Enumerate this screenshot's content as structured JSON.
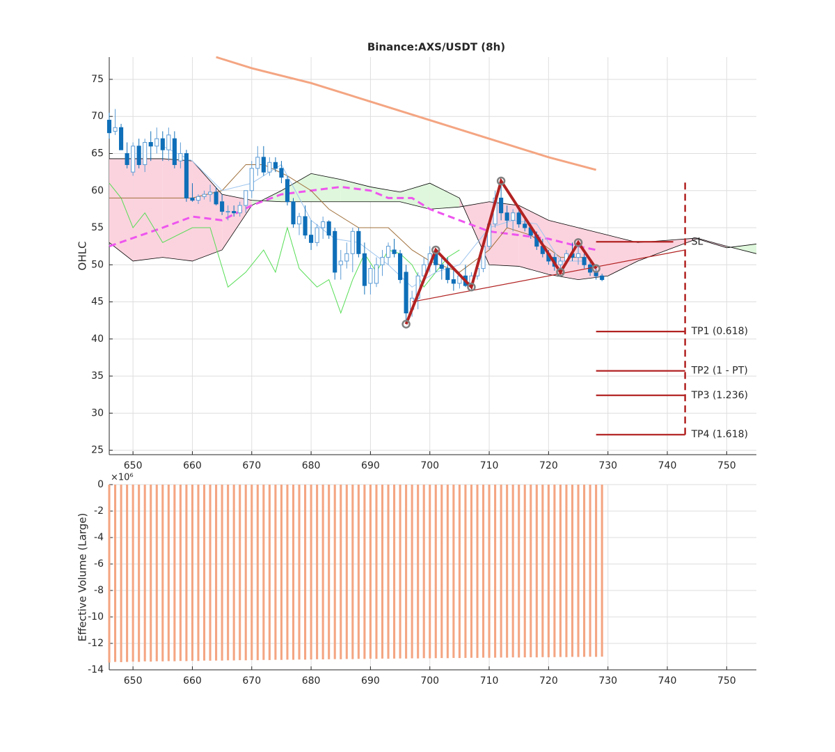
{
  "chart_data": [
    {
      "type": "candlestick",
      "title": "Binance:AXS/USDT (8h)",
      "y_label": "OHLC",
      "xlim": [
        646,
        755
      ],
      "ylim": [
        24.4,
        78
      ],
      "xticks": [
        650,
        660,
        670,
        680,
        690,
        700,
        710,
        720,
        730,
        740,
        750
      ],
      "yticks": [
        25,
        30,
        35,
        40,
        45,
        50,
        55,
        60,
        65,
        70,
        75
      ],
      "grid": true,
      "up_color": "#5b9bd5",
      "down_color": "#0f6fb8",
      "x": [
        646,
        647,
        648,
        649,
        650,
        651,
        652,
        653,
        654,
        655,
        656,
        657,
        658,
        659,
        660,
        661,
        662,
        663,
        664,
        665,
        666,
        667,
        668,
        669,
        670,
        671,
        672,
        673,
        674,
        675,
        676,
        677,
        678,
        679,
        680,
        681,
        682,
        683,
        684,
        685,
        686,
        687,
        688,
        689,
        690,
        691,
        692,
        693,
        694,
        695,
        696,
        697,
        698,
        699,
        700,
        701,
        702,
        703,
        704,
        705,
        706,
        707,
        708,
        709,
        710,
        711,
        712,
        713,
        714,
        715,
        716,
        717,
        718,
        719,
        720,
        721,
        722,
        723,
        724,
        725,
        726,
        727,
        728,
        729
      ],
      "open": [
        69.5,
        68,
        68.5,
        65,
        62.5,
        66,
        63.5,
        66.5,
        66,
        67,
        65.5,
        67,
        64,
        65,
        59,
        58.7,
        59.2,
        59.5,
        59.8,
        58.5,
        57.2,
        57.2,
        57,
        58,
        60,
        63,
        64.5,
        62.5,
        63.8,
        63,
        61.5,
        58.5,
        55.5,
        56.5,
        54,
        53,
        55,
        55.8,
        54.5,
        50,
        50.5,
        51.5,
        54.5,
        51.5,
        47.5,
        47.5,
        50,
        51,
        52,
        51.5,
        49,
        44,
        45.5,
        48.5,
        50,
        51.5,
        50,
        49.5,
        48,
        47.5,
        48.5,
        47.5,
        48.5,
        49.5,
        52.5,
        55.5,
        59,
        57,
        56,
        57,
        55.5,
        55,
        54,
        52.5,
        51.5,
        51,
        50,
        50.5,
        51.5,
        51,
        51,
        50,
        49,
        48.5
      ],
      "high": [
        70.5,
        71,
        69,
        66.5,
        66.5,
        67,
        67,
        68,
        68.5,
        68,
        68.5,
        68,
        66.5,
        65.5,
        61,
        59.5,
        60,
        60.8,
        60.5,
        59.5,
        58,
        58,
        58.5,
        60,
        64,
        66,
        66,
        64.5,
        64.5,
        64,
        62,
        59,
        57,
        58,
        56,
        55.5,
        56.5,
        56,
        55,
        52,
        53,
        55,
        55,
        53,
        50,
        51,
        52,
        53,
        53.5,
        52,
        50,
        46.5,
        49,
        51,
        52.5,
        52,
        51,
        51,
        49.5,
        49,
        50,
        49,
        50,
        53,
        56,
        60,
        61.5,
        58,
        57.5,
        57.5,
        56.5,
        55.5,
        54.5,
        53.5,
        52,
        51.5,
        51,
        52,
        53,
        53,
        51.5,
        50.5,
        49.5,
        48.8
      ],
      "low": [
        67,
        67.5,
        65.5,
        63,
        62,
        63,
        62.5,
        64,
        65,
        64,
        64,
        63,
        63,
        58.5,
        58.5,
        58.2,
        58.8,
        58.5,
        58,
        56.7,
        56,
        56.5,
        56.5,
        57,
        59,
        62,
        62,
        62,
        62.5,
        61,
        58,
        55,
        54,
        53.5,
        52,
        52.5,
        53.5,
        53.5,
        48,
        48,
        49.5,
        49,
        51,
        46,
        46,
        47,
        48.5,
        50,
        51,
        47.5,
        42,
        43,
        44,
        47.5,
        49,
        49,
        48,
        47.5,
        46.5,
        46.8,
        47,
        46.5,
        48,
        49,
        52,
        55,
        56,
        55,
        54.5,
        55,
        54.5,
        53.5,
        52,
        51,
        50,
        49.2,
        48.5,
        50,
        50.5,
        50,
        49.5,
        48.5,
        48,
        47.8
      ],
      "close": [
        67.8,
        68.5,
        65.5,
        63.5,
        66,
        63.5,
        66.5,
        66,
        67,
        65.5,
        67.5,
        63.5,
        65,
        59,
        58.7,
        59.2,
        59.5,
        59.8,
        58.2,
        57.2,
        57.2,
        57,
        58,
        60,
        63,
        64.5,
        62.5,
        63.8,
        63,
        61.8,
        58.5,
        55.5,
        56.5,
        54,
        53,
        55,
        55.8,
        54,
        49,
        50.5,
        51.5,
        54.5,
        51.5,
        47.2,
        49.5,
        50,
        51,
        52.5,
        51.5,
        48,
        43.5,
        45.5,
        48.5,
        50,
        51.5,
        50,
        49.5,
        48,
        47.5,
        48.5,
        47.2,
        48.5,
        49.5,
        52.5,
        55.5,
        59,
        57,
        56,
        57,
        55.5,
        55,
        54,
        52.5,
        51.5,
        50.5,
        49.8,
        50.5,
        51.5,
        51,
        51.5,
        50,
        49,
        48.5,
        48
      ],
      "cloud": {
        "x": [
          646,
          650,
          655,
          660,
          665,
          670,
          675,
          680,
          685,
          690,
          695,
          700,
          705,
          710,
          715,
          720,
          725,
          730,
          735,
          740,
          745,
          750,
          755
        ],
        "span_a": [
          53,
          50.5,
          51,
          50.5,
          52,
          58,
          60,
          62.3,
          61.5,
          60.5,
          59.8,
          61,
          59,
          50,
          49.8,
          48.7,
          48,
          48.5,
          50.5,
          52,
          53.5,
          52.3,
          52.8
        ],
        "span_b": [
          64.3,
          64.3,
          64.3,
          64,
          59.5,
          58.7,
          58.5,
          58.5,
          58.5,
          58.5,
          58.5,
          57.5,
          57.8,
          58.5,
          58,
          56,
          55,
          54,
          53,
          53.3,
          53.6,
          52.5,
          51.5
        ],
        "up_color": "#dff7dc",
        "down_color": "#fbd3de",
        "edge_color": "#000000"
      },
      "lines": [
        {
          "color": "#f4a582",
          "width": 3,
          "dash": "none",
          "x": [
            664,
            670,
            680,
            690,
            700,
            710,
            720,
            728
          ],
          "y": [
            78,
            76.5,
            74.5,
            72,
            69.5,
            67,
            64.5,
            62.8
          ]
        },
        {
          "color": "#ee55ee",
          "width": 3,
          "dash": "10 6",
          "x": [
            646,
            655,
            660,
            665,
            670,
            675,
            680,
            685,
            690,
            693,
            697,
            700,
            705,
            710,
            715,
            720,
            725,
            728
          ],
          "y": [
            52.5,
            55,
            56.5,
            56,
            58,
            59.5,
            60,
            60.5,
            60,
            59,
            59,
            57.5,
            56,
            54.5,
            54,
            53.5,
            52.5,
            52
          ]
        },
        {
          "color": "#55dd55",
          "width": 1,
          "dash": "none",
          "x": [
            646,
            648,
            650,
            652,
            655,
            660,
            663,
            666,
            669,
            672,
            674,
            676,
            678,
            681,
            683,
            685,
            687,
            689,
            691,
            693,
            695,
            697,
            699,
            701,
            703,
            705
          ],
          "y": [
            61,
            59,
            55,
            57,
            53,
            55,
            55,
            47,
            49,
            52,
            49,
            55,
            49.5,
            47,
            48,
            43.5,
            48,
            51.5,
            49,
            52,
            51.5,
            50,
            47,
            49,
            51,
            52
          ]
        },
        {
          "color": "#a0703a",
          "width": 1,
          "dash": "none",
          "x": [
            646,
            660,
            665,
            669,
            672,
            676,
            680,
            683,
            688,
            693,
            697,
            700,
            705,
            710,
            713,
            717,
            722,
            726
          ],
          "y": [
            59,
            59,
            60,
            63.5,
            63.5,
            62,
            60,
            57.5,
            55,
            55,
            52,
            50.5,
            49,
            52,
            55,
            54,
            51,
            51
          ]
        },
        {
          "color": "#9ec5ee",
          "width": 1,
          "dash": "none",
          "x": [
            655,
            660,
            665,
            670,
            675,
            680,
            684,
            688,
            693,
            697,
            701,
            705,
            710,
            714,
            718,
            722,
            726
          ],
          "y": [
            66,
            64,
            60,
            61,
            63.5,
            56,
            53.5,
            53,
            50,
            47,
            49,
            50,
            55,
            56,
            55.5,
            50.5,
            50.5
          ]
        }
      ],
      "trendline": {
        "color": "#b22222",
        "x": [
          697,
          743
        ],
        "y": [
          45,
          52
        ]
      },
      "pattern": {
        "color": "#b22222",
        "marker_color": "#808080",
        "x": [
          696,
          701,
          707,
          712,
          722,
          725,
          728
        ],
        "y": [
          42,
          52,
          47,
          61.3,
          49,
          53,
          49.5
        ]
      },
      "levels": [
        {
          "label": "SL",
          "value": 53.1,
          "x_end": 741
        },
        {
          "label": "TP1 (0.618)",
          "value": 41,
          "x_end": 743
        },
        {
          "label": "TP2 (1 - PT)",
          "value": 35.7,
          "x_end": 743
        },
        {
          "label": "TP3 (1.236)",
          "value": 32.4,
          "x_end": 743
        },
        {
          "label": "TP4 (1.618)",
          "value": 27.1,
          "x_end": 743
        }
      ],
      "level_start": 728,
      "level_color": "#b22222",
      "vline": {
        "x": 743,
        "y": [
          27.1,
          61.5
        ]
      }
    },
    {
      "type": "bar",
      "y_label": "Effective Volume (Large)",
      "y_multiplier": "×10⁶",
      "xlim": [
        646,
        755
      ],
      "ylim": [
        -14,
        0
      ],
      "xticks": [
        650,
        660,
        670,
        680,
        690,
        700,
        710,
        720,
        730,
        740,
        750
      ],
      "yticks": [
        -14,
        -12,
        -10,
        -8,
        -6,
        -4,
        -2,
        0
      ],
      "grid": true,
      "color": "#f4a582",
      "x": [
        646,
        647,
        648,
        649,
        650,
        651,
        652,
        653,
        654,
        655,
        656,
        657,
        658,
        659,
        660,
        661,
        662,
        663,
        664,
        665,
        666,
        667,
        668,
        669,
        670,
        671,
        672,
        673,
        674,
        675,
        676,
        677,
        678,
        679,
        680,
        681,
        682,
        683,
        684,
        685,
        686,
        687,
        688,
        689,
        690,
        691,
        692,
        693,
        694,
        695,
        696,
        697,
        698,
        699,
        700,
        701,
        702,
        703,
        704,
        705,
        706,
        707,
        708,
        709,
        710,
        711,
        712,
        713,
        714,
        715,
        716,
        717,
        718,
        719,
        720,
        721,
        722,
        723,
        724,
        725,
        726,
        727,
        728,
        729
      ],
      "values": [
        -13.45,
        -13.4,
        -13.42,
        -13.4,
        -13.38,
        -13.4,
        -13.36,
        -13.38,
        -13.35,
        -13.36,
        -13.34,
        -13.35,
        -13.33,
        -13.34,
        -13.32,
        -13.33,
        -13.3,
        -13.31,
        -13.3,
        -13.3,
        -13.28,
        -13.29,
        -13.27,
        -13.28,
        -13.26,
        -13.27,
        -13.25,
        -13.26,
        -13.24,
        -13.25,
        -13.23,
        -13.24,
        -13.22,
        -13.23,
        -13.22,
        -13.2,
        -13.21,
        -13.2,
        -13.19,
        -13.2,
        -13.18,
        -13.19,
        -13.17,
        -13.18,
        -13.16,
        -13.17,
        -13.15,
        -13.16,
        -13.15,
        -13.14,
        -13.15,
        -13.13,
        -13.14,
        -13.12,
        -13.13,
        -13.12,
        -13.11,
        -13.12,
        -13.1,
        -13.11,
        -13.1,
        -13.09,
        -13.1,
        -13.08,
        -13.09,
        -13.08,
        -13.07,
        -13.08,
        -13.06,
        -13.07,
        -13.06,
        -13.05,
        -13.06,
        -13.04,
        -13.05,
        -13.04,
        -13.03,
        -13.04,
        -13.02,
        -13.03,
        -13.02,
        -13.01,
        -13.02,
        -13.0
      ]
    }
  ]
}
